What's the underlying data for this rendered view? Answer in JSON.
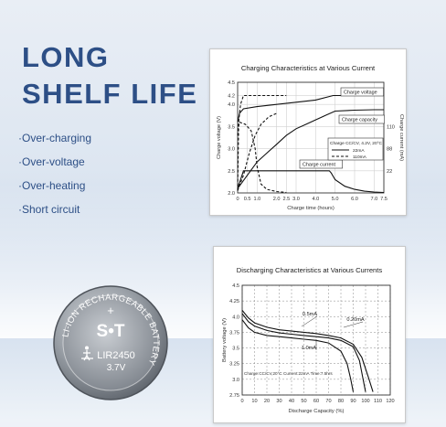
{
  "headline": {
    "line1": "LONG",
    "line2": "SHELF LIFE"
  },
  "features": [
    "·Over-charging",
    "·Over-voltage",
    "·Over-heating",
    "·Short circuit"
  ],
  "coin": {
    "ring_text": "LI-ION RECHARGEABLE BATTERY",
    "plus": "+",
    "logo": "S•T",
    "model": "LIR2450",
    "voltage": "3.7V"
  },
  "chart_data": [
    {
      "type": "line",
      "title": "Charging Characteristics at Various Current",
      "xlabel": "Charge time (hours)",
      "ylabel": "Charge voltage (V)",
      "y2label": "Charge current (mA)",
      "x_ticks": [
        "0",
        "0.5",
        "1.0",
        "2.0",
        "2.5",
        "3.0",
        "4.0",
        "5.0",
        "6.0",
        "7.0",
        "7.5"
      ],
      "y_ticks": [
        "2.0",
        "2.5",
        "3.0",
        "3.5",
        "4.0",
        "4.2",
        "4.5"
      ],
      "y2_ticks": [
        "110",
        "88",
        "22"
      ],
      "xlim": [
        0,
        7.5
      ],
      "ylim": [
        2.0,
        4.5
      ],
      "labels": {
        "voltage": "Charge voltage",
        "capacity": "Charge capacity",
        "current": "Charge current"
      },
      "legend": {
        "title": "Charge CC/CV, 4.2V, 20°C",
        "items": [
          "22mA",
          "110mA"
        ]
      },
      "series": [
        {
          "name": "Charge voltage",
          "style": "solid",
          "x": [
            0,
            0.1,
            0.3,
            1,
            2,
            3,
            4,
            4.9,
            5.2,
            6,
            7,
            7.5
          ],
          "y": [
            3.6,
            3.8,
            3.9,
            3.95,
            4.0,
            4.05,
            4.1,
            4.2,
            4.2,
            4.2,
            4.2,
            4.2
          ]
        },
        {
          "name": "Charge capacity",
          "style": "solid",
          "x": [
            0,
            0.5,
            1,
            1.5,
            2,
            2.5,
            3,
            3.5,
            4,
            4.5,
            5,
            6,
            7,
            7.5
          ],
          "y": [
            2.1,
            2.4,
            2.7,
            2.9,
            3.1,
            3.3,
            3.45,
            3.55,
            3.65,
            3.75,
            3.85,
            3.87,
            3.88,
            3.88
          ]
        },
        {
          "name": "Charge current",
          "style": "solid",
          "x": [
            0,
            0.3,
            4.7,
            4.8,
            5.0,
            5.5,
            6,
            6.5,
            7,
            7.5
          ],
          "y": [
            2.1,
            2.5,
            2.5,
            2.45,
            2.3,
            2.15,
            2.08,
            2.04,
            2.02,
            2.01
          ]
        },
        {
          "name": "110mA voltage",
          "style": "dashed",
          "x": [
            0,
            0.05,
            0.15,
            0.3,
            0.6,
            0.9,
            1,
            1.1,
            1.5,
            2.5
          ],
          "y": [
            3.3,
            3.6,
            4.0,
            4.2,
            4.2,
            4.2,
            4.2,
            4.2,
            4.2,
            4.2
          ]
        },
        {
          "name": "110mA current",
          "style": "dashed",
          "x": [
            0,
            0.05,
            0.1,
            0.4,
            0.7,
            0.9,
            1,
            1.2,
            1.5,
            2.0,
            2.5
          ],
          "y": [
            2.05,
            3.5,
            3.6,
            3.55,
            3.4,
            3.0,
            2.6,
            2.2,
            2.08,
            2.03,
            2.01
          ]
        },
        {
          "name": "110mA capacity",
          "style": "dashed",
          "x": [
            0,
            0.3,
            0.6,
            0.9,
            1.2,
            1.6,
            2.0
          ],
          "y": [
            2.05,
            2.4,
            2.9,
            3.3,
            3.55,
            3.72,
            3.8
          ]
        }
      ]
    },
    {
      "type": "line",
      "title": "Discharging Characteristics at Various Currents",
      "xlabel": "Discharge Capacity (%)",
      "ylabel": "Battery voltage (V)",
      "x_ticks": [
        "0",
        "10",
        "20",
        "30",
        "40",
        "50",
        "60",
        "70",
        "80",
        "90",
        "100",
        "110",
        "120"
      ],
      "y_ticks": [
        "2.75",
        "3.0",
        "3.25",
        "3.5",
        "3.75",
        "4.0",
        "4.25",
        "4.5"
      ],
      "xlim": [
        0,
        120
      ],
      "ylim": [
        2.75,
        4.5
      ],
      "annotation": "Charge:CC/CV,20°C Current:22mA Time:7.5hrs",
      "series": [
        {
          "name": "0.5mA",
          "x": [
            0,
            5,
            10,
            20,
            30,
            40,
            50,
            60,
            70,
            80,
            90,
            95,
            98,
            100
          ],
          "y": [
            4.05,
            3.92,
            3.85,
            3.78,
            3.74,
            3.72,
            3.7,
            3.68,
            3.66,
            3.62,
            3.52,
            3.3,
            3.0,
            2.8
          ]
        },
        {
          "name": "0.20mA",
          "x": [
            0,
            5,
            10,
            20,
            30,
            40,
            50,
            60,
            70,
            80,
            90,
            97,
            102,
            106
          ],
          "y": [
            4.1,
            3.98,
            3.9,
            3.83,
            3.79,
            3.77,
            3.75,
            3.73,
            3.7,
            3.66,
            3.56,
            3.35,
            3.05,
            2.8
          ]
        },
        {
          "name": "1.0mA",
          "x": [
            0,
            5,
            10,
            20,
            30,
            40,
            50,
            60,
            70,
            80,
            85,
            88,
            90
          ],
          "y": [
            3.95,
            3.82,
            3.75,
            3.7,
            3.68,
            3.66,
            3.64,
            3.62,
            3.58,
            3.45,
            3.25,
            3.0,
            2.8
          ]
        }
      ]
    }
  ]
}
